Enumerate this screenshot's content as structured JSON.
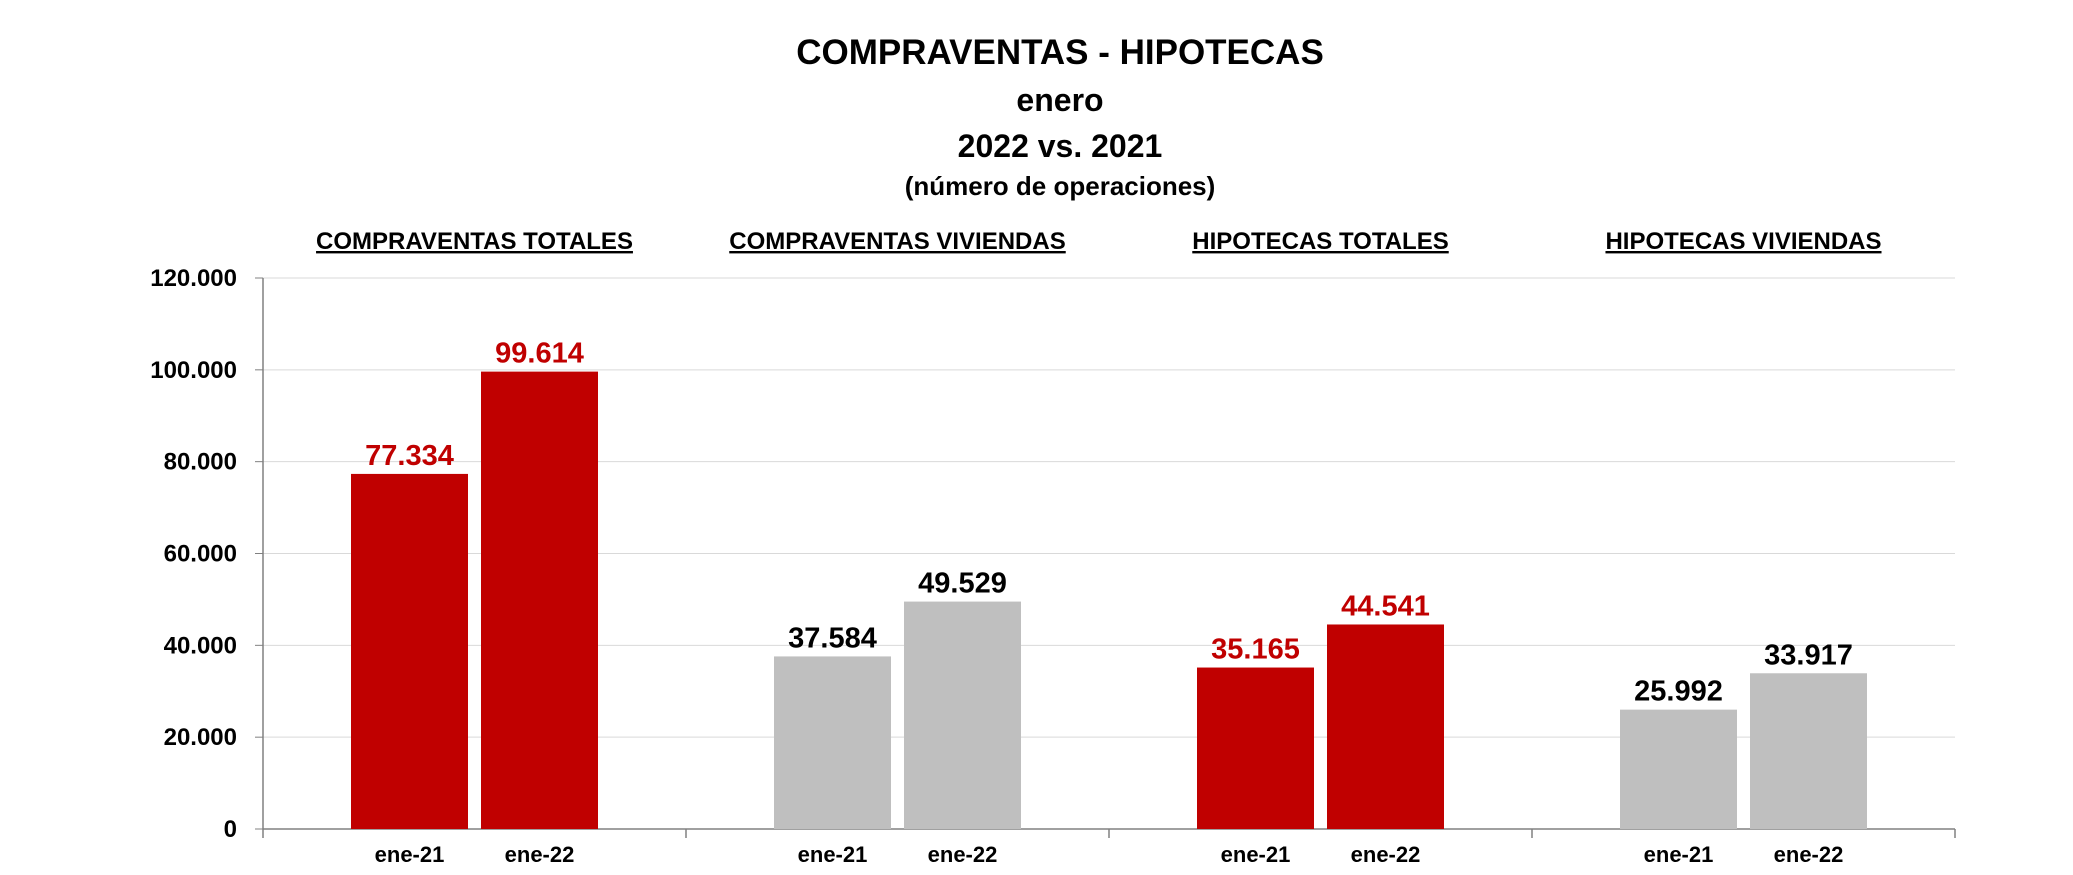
{
  "chart_data": {
    "type": "bar",
    "title": "COMPRAVENTAS - HIPOTECAS",
    "subtitle_lines": [
      "enero",
      "2022 vs. 2021",
      "(número de operaciones)"
    ],
    "ylim": [
      0,
      120000
    ],
    "y_ticks": [
      {
        "value": 0,
        "label": "0"
      },
      {
        "value": 20000,
        "label": "20.000"
      },
      {
        "value": 40000,
        "label": "40.000"
      },
      {
        "value": 60000,
        "label": "60.000"
      },
      {
        "value": 80000,
        "label": "80.000"
      },
      {
        "value": 100000,
        "label": "100.000"
      },
      {
        "value": 120000,
        "label": "120.000"
      }
    ],
    "grid": true,
    "legend": "none",
    "groups": [
      {
        "name": "COMPRAVENTAS TOTALES",
        "color": "#c00000",
        "label_color": "#c00000",
        "bars": [
          {
            "category": "ene-21",
            "value": 77334,
            "label": "77.334"
          },
          {
            "category": "ene-22",
            "value": 99614,
            "label": "99.614"
          }
        ]
      },
      {
        "name": "COMPRAVENTAS VIVIENDAS",
        "color": "#bfbfbf",
        "label_color": "#000000",
        "bars": [
          {
            "category": "ene-21",
            "value": 37584,
            "label": "37.584"
          },
          {
            "category": "ene-22",
            "value": 49529,
            "label": "49.529"
          }
        ]
      },
      {
        "name": "HIPOTECAS TOTALES",
        "color": "#c00000",
        "label_color": "#c00000",
        "bars": [
          {
            "category": "ene-21",
            "value": 35165,
            "label": "35.165"
          },
          {
            "category": "ene-22",
            "value": 44541,
            "label": "44.541"
          }
        ]
      },
      {
        "name": "HIPOTECAS VIVIENDAS",
        "color": "#bfbfbf",
        "label_color": "#000000",
        "bars": [
          {
            "category": "ene-21",
            "value": 25992,
            "label": "25.992"
          },
          {
            "category": "ene-22",
            "value": 33917,
            "label": "33.917"
          }
        ]
      }
    ]
  }
}
